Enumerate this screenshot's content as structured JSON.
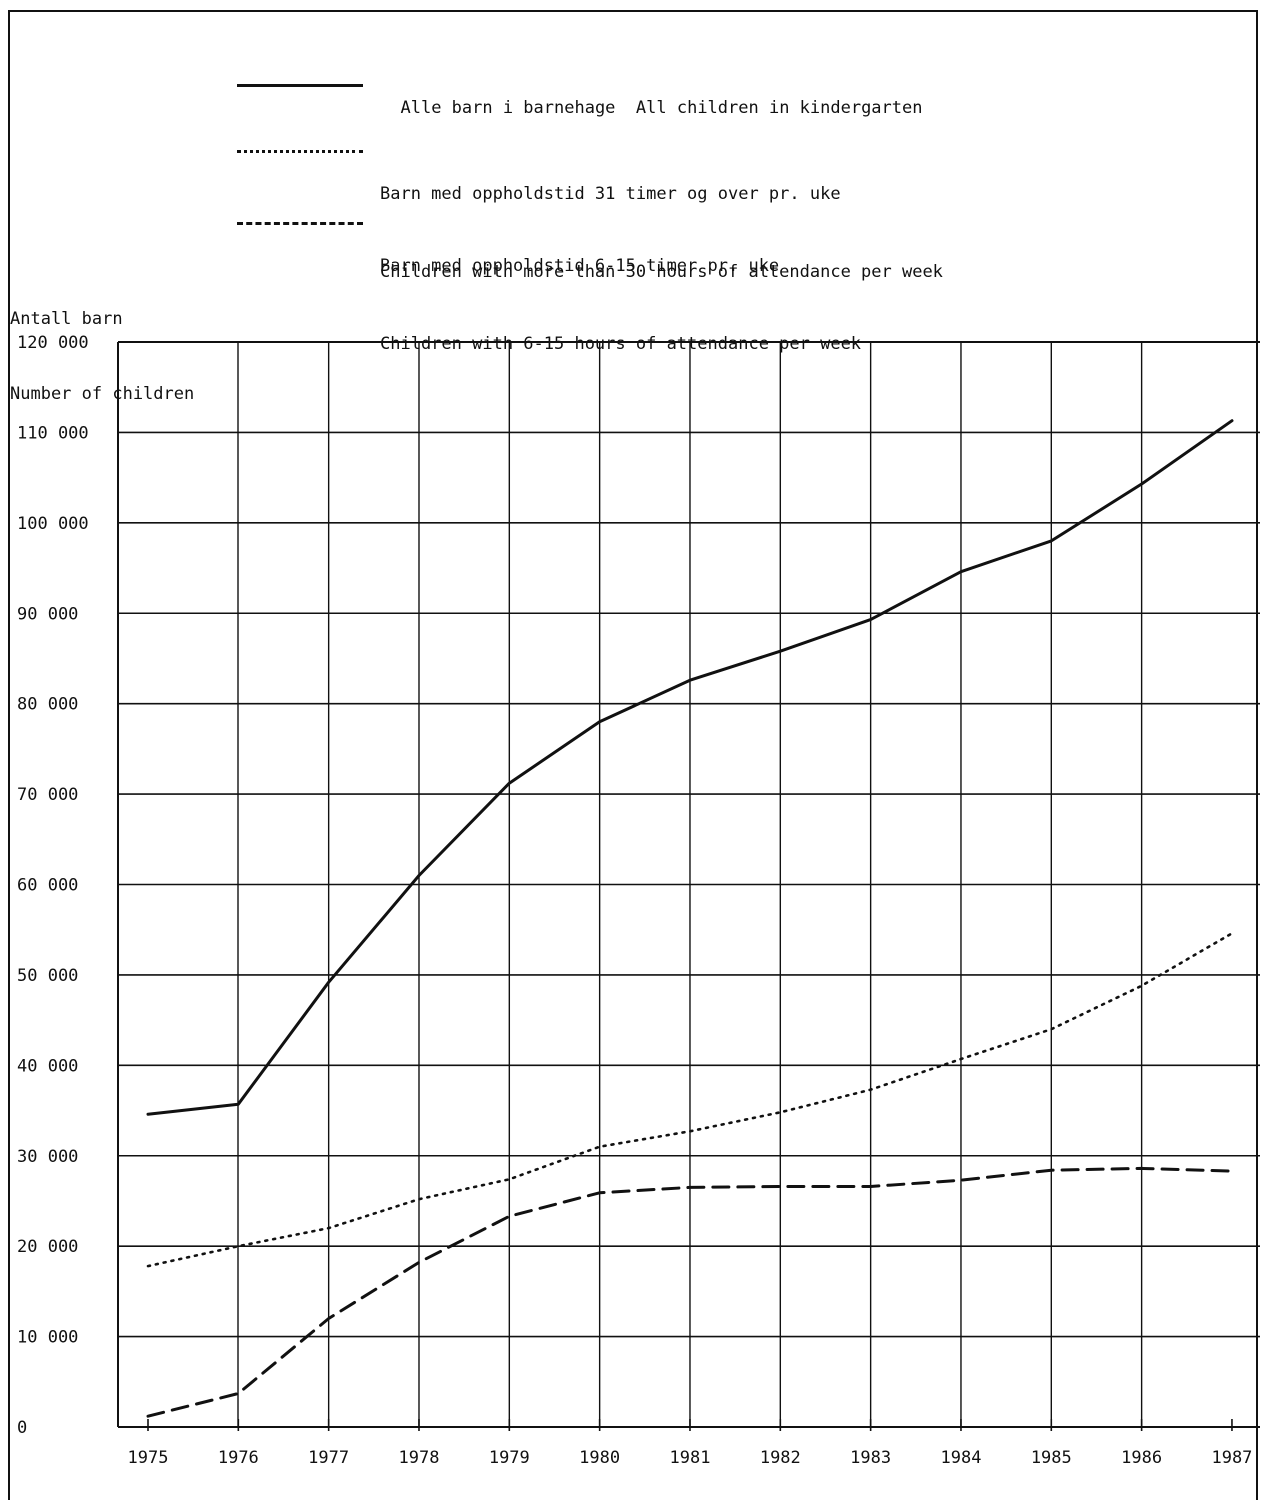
{
  "legend": [
    {
      "id": "all",
      "style": "solid",
      "text_no": "Alle barn i barnehage",
      "text_en": "All children in kindergarten"
    },
    {
      "id": "over30",
      "style": "dotted",
      "text_no": "Barn med oppholdstid 31 timer og over pr. uke",
      "text_en": "Children with more than 30 hours of attendance per week"
    },
    {
      "id": "h6_15",
      "style": "dashed",
      "text_no": "Barn med oppholdstid 6-15 timer pr. uke",
      "text_en": "Children with 6-15 hours of attendance per week"
    }
  ],
  "y_axis_label": {
    "line1": "Antall barn",
    "line2": "Number of children"
  },
  "chart_data": {
    "type": "line",
    "title": "",
    "xlabel": "",
    "ylabel": "Antall barn / Number of children",
    "x": [
      1975,
      1976,
      1977,
      1978,
      1979,
      1980,
      1981,
      1982,
      1983,
      1984,
      1985,
      1986,
      1987
    ],
    "x_tick_labels": [
      "1975",
      "1976",
      "1977",
      "1978",
      "1979",
      "1980",
      "1981",
      "1982",
      "1983",
      "1984",
      "1985",
      "1986",
      "1987"
    ],
    "y_tick_labels": [
      "0",
      "10 000",
      "20 000",
      "30 000",
      "40 000",
      "50 000",
      "60 000",
      "70 000",
      "80 000",
      "90 000",
      "100 000",
      "110 000",
      "120 000"
    ],
    "ylim": [
      0,
      120000
    ],
    "grid": true,
    "legend_position": "top",
    "series": [
      {
        "name": "Alle barn i barnehage All children in kindergarten",
        "style": "solid",
        "values": [
          34600,
          35700,
          49200,
          61000,
          71200,
          78000,
          82600,
          85800,
          89300,
          94600,
          98000,
          104300,
          111300
        ]
      },
      {
        "name": "Barn med oppholdstid 31 timer og over pr. uke Children with more than 30 hours of attendance per week",
        "style": "dotted",
        "values": [
          17800,
          20000,
          22000,
          25200,
          27400,
          31000,
          32700,
          34800,
          37300,
          40700,
          44000,
          48800,
          54600
        ]
      },
      {
        "name": "Barn med oppholdstid 6-15 timer pr. uke Children with 6-15 hours of attendance per week",
        "style": "dashed",
        "values": [
          1200,
          3700,
          12000,
          18200,
          23300,
          25900,
          26500,
          26600,
          26600,
          27300,
          28400,
          28600,
          28300
        ]
      }
    ]
  }
}
